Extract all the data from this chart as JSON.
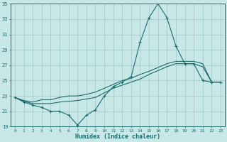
{
  "xlabel": "Humidex (Indice chaleur)",
  "background_color": "#c8e8e8",
  "grid_color": "#a0c8c8",
  "line_color": "#1a6b6b",
  "x_values": [
    0,
    1,
    2,
    3,
    4,
    5,
    6,
    7,
    8,
    9,
    10,
    11,
    12,
    13,
    14,
    15,
    16,
    17,
    18,
    19,
    20,
    21,
    22,
    23
  ],
  "series1": [
    22.8,
    22.2,
    21.8,
    21.5,
    21.0,
    21.0,
    20.5,
    19.2,
    20.5,
    21.2,
    23.0,
    24.2,
    24.8,
    25.5,
    30.0,
    33.2,
    35.0,
    33.2,
    29.5,
    27.2,
    27.2,
    25.0,
    24.8,
    24.8
  ],
  "series2": [
    22.8,
    22.4,
    22.2,
    22.5,
    22.5,
    22.8,
    23.0,
    23.0,
    23.2,
    23.5,
    24.0,
    24.5,
    25.0,
    25.3,
    25.8,
    26.2,
    26.7,
    27.2,
    27.5,
    27.5,
    27.5,
    27.2,
    24.8,
    24.8
  ],
  "series3": [
    22.8,
    22.3,
    22.0,
    22.0,
    22.0,
    22.2,
    22.3,
    22.4,
    22.6,
    22.8,
    23.4,
    24.0,
    24.4,
    24.8,
    25.2,
    25.8,
    26.3,
    26.8,
    27.2,
    27.2,
    27.2,
    26.8,
    24.8,
    24.8
  ],
  "ylim": [
    19,
    35
  ],
  "xlim": [
    -0.5,
    23.5
  ],
  "yticks": [
    19,
    21,
    23,
    25,
    27,
    29,
    31,
    33,
    35
  ],
  "xticks": [
    0,
    1,
    2,
    3,
    4,
    5,
    6,
    7,
    8,
    9,
    10,
    11,
    12,
    13,
    14,
    15,
    16,
    17,
    18,
    19,
    20,
    21,
    22,
    23
  ]
}
